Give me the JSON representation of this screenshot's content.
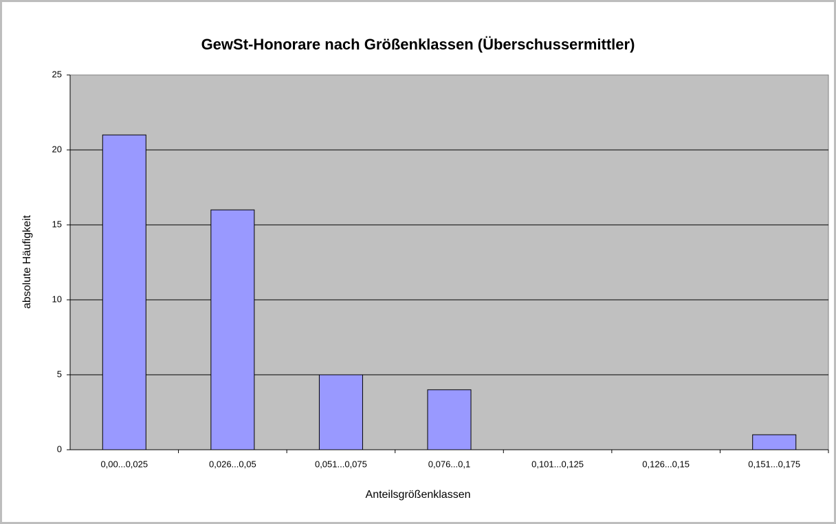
{
  "chart_data": {
    "type": "bar",
    "title": "GewSt-Honorare nach Größenklassen (Überschussermittler)",
    "x_label": "Anteilsgrößenklassen",
    "y_label": "absolute Häufigkeit",
    "categories": [
      "0,00...0,025",
      "0,026...0,05",
      "0,051...0,075",
      "0,076...0,1",
      "0,101...0,125",
      "0,126...0,15",
      "0,151...0,175"
    ],
    "values": [
      21,
      16,
      5,
      4,
      0,
      0,
      1
    ],
    "color": "#9999ff",
    "ylim": [
      0,
      25
    ],
    "yticks": [
      0,
      5,
      10,
      15,
      20,
      25
    ],
    "grid": true
  }
}
